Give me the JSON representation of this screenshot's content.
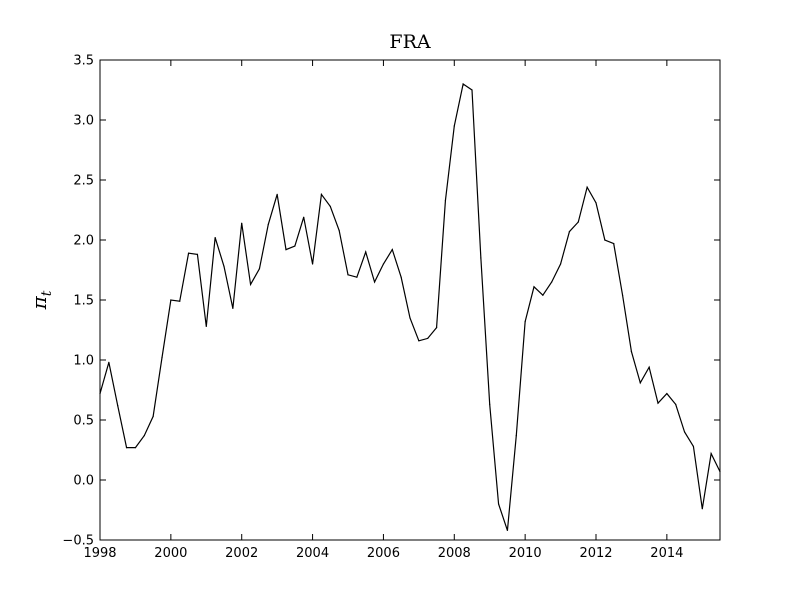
{
  "chart_data": {
    "type": "line",
    "title": "FRA",
    "xlabel": "",
    "ylabel_base": "π",
    "ylabel_sub": "t",
    "xlim": [
      1998,
      2015.5
    ],
    "ylim": [
      -0.5,
      3.5
    ],
    "x_ticks": [
      1998,
      2000,
      2002,
      2004,
      2006,
      2008,
      2010,
      2012,
      2014
    ],
    "y_ticks": [
      -0.5,
      0.0,
      0.5,
      1.0,
      1.5,
      2.0,
      2.5,
      3.0,
      3.5
    ],
    "x_tick_labels": [
      "1998",
      "2000",
      "2002",
      "2004",
      "2006",
      "2008",
      "2010",
      "2012",
      "2014"
    ],
    "y_tick_labels": [
      "−0.5",
      "0.0",
      "0.5",
      "1.0",
      "1.5",
      "2.0",
      "2.5",
      "3.0",
      "3.5"
    ],
    "grid": false,
    "line_color": "#000000",
    "series": [
      {
        "x": [
          1998.0,
          1998.25,
          1998.5,
          1998.75,
          1999.0,
          1999.25,
          1999.5,
          1999.75,
          2000.0,
          2000.25,
          2000.5,
          2000.75,
          2001.0,
          2001.25,
          2001.5,
          2001.75,
          2002.0,
          2002.25,
          2002.5,
          2002.75,
          2003.0,
          2003.25,
          2003.5,
          2003.75,
          2004.0,
          2004.25,
          2004.5,
          2004.75,
          2005.0,
          2005.25,
          2005.5,
          2005.75,
          2006.0,
          2006.25,
          2006.5,
          2006.75,
          2007.0,
          2007.25,
          2007.5,
          2007.75,
          2008.0,
          2008.25,
          2008.5,
          2008.75,
          2009.0,
          2009.25,
          2009.5,
          2009.75,
          2010.0,
          2010.25,
          2010.5,
          2010.75,
          2011.0,
          2011.25,
          2011.5,
          2011.75,
          2012.0,
          2012.25,
          2012.5,
          2012.75,
          2013.0,
          2013.25,
          2013.5,
          2013.75,
          2014.0,
          2014.25,
          2014.5,
          2014.75,
          2015.0,
          2015.25,
          2015.5
        ],
        "values": [
          0.72,
          0.98,
          0.62,
          0.27,
          0.27,
          0.37,
          0.53,
          1.02,
          1.5,
          1.49,
          1.89,
          1.88,
          1.28,
          2.02,
          1.78,
          1.43,
          2.14,
          1.63,
          1.76,
          2.13,
          2.38,
          1.92,
          1.95,
          2.19,
          1.8,
          2.38,
          2.28,
          2.08,
          1.71,
          1.69,
          1.9,
          1.65,
          1.8,
          1.92,
          1.69,
          1.35,
          1.16,
          1.18,
          1.27,
          2.33,
          2.95,
          3.3,
          3.25,
          1.85,
          0.63,
          -0.2,
          -0.42,
          0.37,
          1.32,
          1.61,
          1.54,
          1.65,
          1.8,
          2.07,
          2.15,
          2.44,
          2.31,
          2.0,
          1.97,
          1.54,
          1.07,
          0.81,
          0.94,
          0.64,
          0.72,
          0.63,
          0.4,
          0.28,
          -0.24,
          0.22,
          0.07
        ]
      }
    ]
  }
}
